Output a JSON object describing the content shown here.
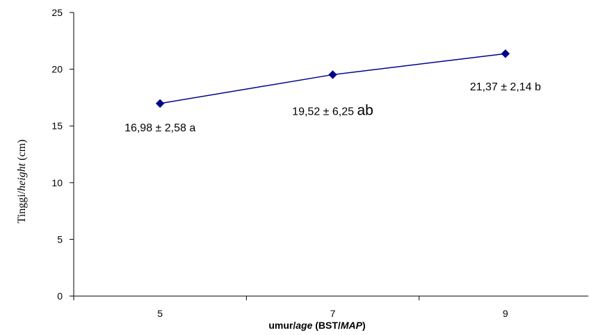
{
  "chart_data": {
    "type": "line",
    "categories": [
      "5",
      "7",
      "9"
    ],
    "series": [
      {
        "values": [
          16.98,
          19.52,
          21.37
        ],
        "color": "#00008B",
        "marker": "diamond"
      }
    ],
    "data_labels": [
      {
        "text": "16,98 ± 2,58 a"
      },
      {
        "text": "19,52 ± 6,25 ",
        "suffix": "ab"
      },
      {
        "text": "21,37 ± 2,14 b"
      }
    ],
    "ylabel": {
      "prefix": "Tinggi/",
      "italic": "height",
      "suffix": " (cm)"
    },
    "xlabel": {
      "prefix": "umur/",
      "italic": "age",
      "middle": " (BST/",
      "italic2": "MAP",
      "suffix": ")"
    },
    "ylim": [
      0,
      25
    ],
    "yticks": [
      "0",
      "5",
      "10",
      "15",
      "20",
      "25"
    ],
    "grid": false,
    "legend": "none"
  }
}
